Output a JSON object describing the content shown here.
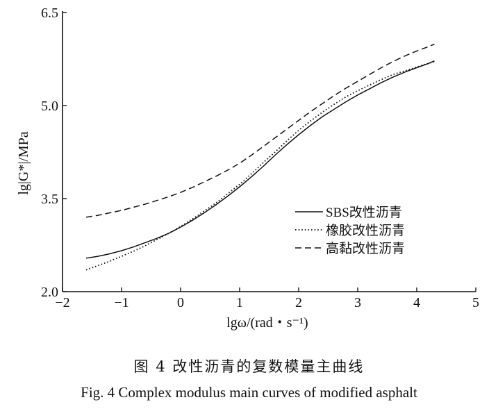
{
  "figure": {
    "caption_cn": "图 4   改性沥青的复数模量主曲线",
    "caption_en": "Fig. 4   Complex modulus main curves of modified asphalt"
  },
  "chart_data": {
    "type": "line",
    "xlabel": "lgω/(rad・s⁻¹)",
    "ylabel": "lg|G*|/MPa",
    "xlim": [
      -2,
      5
    ],
    "ylim": [
      2.0,
      6.5
    ],
    "x_ticks": [
      "−2",
      "−1",
      "0",
      "1",
      "2",
      "3",
      "4",
      "5"
    ],
    "y_ticks": [
      "2.0",
      "3.5",
      "5.0",
      "6.5"
    ],
    "x_tick_values": [
      -2,
      -1,
      0,
      1,
      2,
      3,
      4,
      5
    ],
    "y_tick_values": [
      2.0,
      3.5,
      5.0,
      6.5
    ],
    "legend_position": "middle-right",
    "grid": false,
    "series": [
      {
        "name": "SBS改性沥青",
        "style": "solid",
        "color": "#111111",
        "x": [
          -1.6,
          -1.4,
          -1.2,
          -1.0,
          -0.8,
          -0.6,
          -0.4,
          -0.2,
          0.0,
          0.2,
          0.4,
          0.6,
          0.8,
          1.0,
          1.2,
          1.4,
          1.6,
          1.8,
          2.0,
          2.2,
          2.4,
          2.6,
          2.8,
          3.0,
          3.2,
          3.4,
          3.6,
          3.8,
          4.0,
          4.2,
          4.3
        ],
        "y": [
          2.54,
          2.57,
          2.61,
          2.66,
          2.72,
          2.79,
          2.86,
          2.94,
          3.04,
          3.15,
          3.27,
          3.4,
          3.54,
          3.69,
          3.85,
          4.02,
          4.2,
          4.37,
          4.53,
          4.68,
          4.82,
          4.94,
          5.06,
          5.17,
          5.27,
          5.37,
          5.46,
          5.54,
          5.61,
          5.68,
          5.72
        ]
      },
      {
        "name": "橡胶改性沥青",
        "style": "dotted",
        "color": "#111111",
        "x": [
          -1.6,
          -1.4,
          -1.2,
          -1.0,
          -0.8,
          -0.6,
          -0.4,
          -0.2,
          0.0,
          0.2,
          0.4,
          0.6,
          0.8,
          1.0,
          1.2,
          1.4,
          1.6,
          1.8,
          2.0,
          2.2,
          2.4,
          2.6,
          2.8,
          3.0,
          3.2,
          3.4,
          3.6,
          3.8,
          4.0,
          4.2,
          4.3
        ],
        "y": [
          2.35,
          2.42,
          2.49,
          2.57,
          2.65,
          2.74,
          2.84,
          2.94,
          3.05,
          3.17,
          3.3,
          3.43,
          3.58,
          3.73,
          3.9,
          4.08,
          4.25,
          4.43,
          4.6,
          4.75,
          4.89,
          5.02,
          5.14,
          5.24,
          5.33,
          5.42,
          5.5,
          5.56,
          5.62,
          5.68,
          5.71
        ]
      },
      {
        "name": "高黏改性沥青",
        "style": "dashed",
        "color": "#111111",
        "x": [
          -1.6,
          -1.4,
          -1.2,
          -1.0,
          -0.8,
          -0.6,
          -0.4,
          -0.2,
          0.0,
          0.2,
          0.4,
          0.6,
          0.8,
          1.0,
          1.2,
          1.4,
          1.6,
          1.8,
          2.0,
          2.2,
          2.4,
          2.6,
          2.8,
          3.0,
          3.2,
          3.4,
          3.6,
          3.8,
          4.0,
          4.2,
          4.3
        ],
        "y": [
          3.2,
          3.23,
          3.27,
          3.31,
          3.36,
          3.41,
          3.47,
          3.53,
          3.6,
          3.68,
          3.77,
          3.86,
          3.96,
          4.07,
          4.2,
          4.34,
          4.48,
          4.62,
          4.76,
          4.9,
          5.03,
          5.16,
          5.28,
          5.39,
          5.5,
          5.61,
          5.71,
          5.8,
          5.88,
          5.95,
          5.99
        ]
      }
    ]
  }
}
